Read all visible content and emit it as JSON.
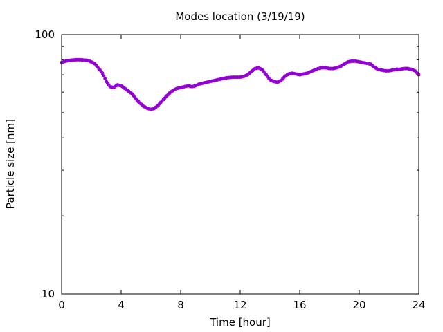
{
  "chart_data": {
    "type": "scatter",
    "title": "Modes location (3/19/19)",
    "xlabel": "Time [hour]",
    "ylabel": "Particle size [nm]",
    "xlim": [
      0,
      24
    ],
    "ylim": [
      10,
      100
    ],
    "yscale": "log",
    "grid": false,
    "legend": "none",
    "marker_color": "#9400d3",
    "x_ticks": [
      0,
      4,
      8,
      12,
      16,
      20,
      24
    ],
    "x_tick_labels": [
      "0",
      "4",
      "8",
      "12",
      "16",
      "20",
      "24"
    ],
    "y_ticks": [
      10,
      100
    ],
    "y_tick_labels": [
      "10",
      "100"
    ],
    "series": [
      {
        "x": [
          0,
          0.25,
          0.5,
          0.75,
          1.0,
          1.25,
          1.5,
          1.75,
          2.0,
          2.25,
          2.5,
          2.75,
          3.0,
          3.25,
          3.5,
          3.75,
          4.0,
          4.25,
          4.5,
          4.75,
          5.0,
          5.25,
          5.5,
          5.75,
          6.0,
          6.25,
          6.5,
          6.75,
          7.0,
          7.25,
          7.5,
          7.75,
          8.0,
          8.25,
          8.5,
          8.75,
          9.0,
          9.25,
          9.5,
          9.75,
          10.0,
          10.25,
          10.5,
          10.75,
          11.0,
          11.25,
          11.5,
          11.75,
          12.0,
          12.25,
          12.5,
          12.75,
          13.0,
          13.25,
          13.5,
          13.75,
          14.0,
          14.25,
          14.5,
          14.75,
          15.0,
          15.25,
          15.5,
          15.75,
          16.0,
          16.25,
          16.5,
          16.75,
          17.0,
          17.25,
          17.5,
          17.75,
          18.0,
          18.25,
          18.5,
          18.75,
          19.0,
          19.25,
          19.5,
          19.75,
          20.0,
          20.25,
          20.5,
          20.75,
          21.0,
          21.25,
          21.5,
          21.75,
          22.0,
          22.25,
          22.5,
          22.75,
          23.0,
          23.25,
          23.5,
          23.75,
          24.0
        ],
        "values": [
          78,
          79,
          79.5,
          79.8,
          80,
          80,
          79.8,
          79.5,
          78.5,
          77,
          74,
          71,
          66,
          63,
          62.5,
          64,
          63.5,
          62,
          60.5,
          59,
          56.5,
          54.5,
          53,
          52,
          51.5,
          52,
          53.5,
          55.5,
          57.5,
          59.5,
          61,
          62,
          62.5,
          63,
          63.5,
          63,
          63.5,
          64.5,
          65,
          65.5,
          66,
          66.5,
          67,
          67.5,
          68,
          68.3,
          68.5,
          68.5,
          68.5,
          69,
          70,
          72,
          74,
          74.5,
          73,
          70,
          67,
          66,
          65.5,
          66.5,
          69,
          70.5,
          71,
          70.5,
          70,
          70.5,
          71,
          72,
          73,
          74,
          74.5,
          74.5,
          74,
          74,
          74.5,
          75.5,
          77,
          78.5,
          79,
          79,
          78.5,
          78,
          77.5,
          77,
          75,
          73.5,
          73,
          72.5,
          72.5,
          73,
          73.5,
          73.5,
          74,
          74,
          73.5,
          72.5,
          70
        ]
      }
    ]
  }
}
